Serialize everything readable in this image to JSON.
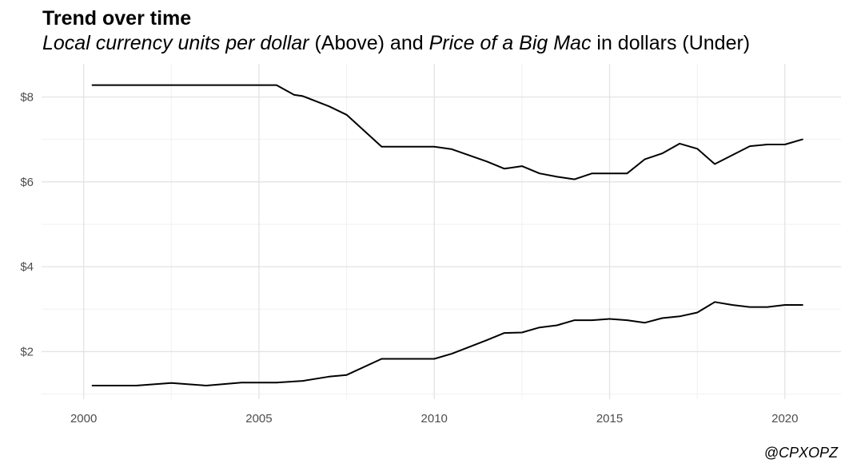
{
  "chart_data": {
    "type": "line",
    "title": "Trend over time",
    "subtitle_parts": [
      {
        "text": "Local currency units per dollar",
        "italic": true
      },
      {
        "text": " (Above) and ",
        "italic": false
      },
      {
        "text": "Price of a Big Mac",
        "italic": true
      },
      {
        "text": " in dollars (Under)",
        "italic": false
      }
    ],
    "caption": "@CPXOPZ",
    "xlim": [
      1998.8,
      2021.6
    ],
    "ylim": [
      0.88,
      8.78
    ],
    "x_ticks": [
      2000,
      2005,
      2010,
      2015,
      2020
    ],
    "x_tick_labels": [
      "2000",
      "2005",
      "2010",
      "2015",
      "2020"
    ],
    "y_ticks": [
      2,
      4,
      6,
      8
    ],
    "y_tick_labels": [
      "$2",
      "$4",
      "$6",
      "$8"
    ],
    "grid": true,
    "series": [
      {
        "color": "#000000",
        "points": [
          [
            2000.25,
            8.28
          ],
          [
            2001.5,
            8.28
          ],
          [
            2002.5,
            8.28
          ],
          [
            2003.5,
            8.28
          ],
          [
            2004.5,
            8.28
          ],
          [
            2005.5,
            8.28
          ],
          [
            2006.0,
            8.05
          ],
          [
            2006.25,
            8.02
          ],
          [
            2007.0,
            7.78
          ],
          [
            2007.5,
            7.58
          ],
          [
            2008.5,
            6.83
          ],
          [
            2010.0,
            6.83
          ],
          [
            2010.5,
            6.77
          ],
          [
            2011.5,
            6.48
          ],
          [
            2012.0,
            6.31
          ],
          [
            2012.5,
            6.37
          ],
          [
            2013.0,
            6.2
          ],
          [
            2013.5,
            6.12
          ],
          [
            2014.0,
            6.06
          ],
          [
            2014.5,
            6.2
          ],
          [
            2015.5,
            6.2
          ],
          [
            2016.0,
            6.53
          ],
          [
            2016.5,
            6.67
          ],
          [
            2017.0,
            6.9
          ],
          [
            2017.5,
            6.78
          ],
          [
            2018.0,
            6.42
          ],
          [
            2019.0,
            6.84
          ],
          [
            2019.5,
            6.88
          ],
          [
            2020.0,
            6.88
          ],
          [
            2020.5,
            7.0
          ]
        ]
      },
      {
        "color": "#000000",
        "points": [
          [
            2000.25,
            1.2
          ],
          [
            2001.5,
            1.2
          ],
          [
            2002.5,
            1.26
          ],
          [
            2003.5,
            1.2
          ],
          [
            2004.5,
            1.27
          ],
          [
            2005.5,
            1.27
          ],
          [
            2006.25,
            1.31
          ],
          [
            2007.0,
            1.41
          ],
          [
            2007.5,
            1.45
          ],
          [
            2008.5,
            1.83
          ],
          [
            2010.0,
            1.83
          ],
          [
            2010.5,
            1.95
          ],
          [
            2011.5,
            2.27
          ],
          [
            2012.0,
            2.44
          ],
          [
            2012.5,
            2.45
          ],
          [
            2013.0,
            2.57
          ],
          [
            2013.5,
            2.62
          ],
          [
            2014.0,
            2.74
          ],
          [
            2014.5,
            2.74
          ],
          [
            2015.0,
            2.77
          ],
          [
            2015.5,
            2.74
          ],
          [
            2016.0,
            2.68
          ],
          [
            2016.5,
            2.79
          ],
          [
            2017.0,
            2.83
          ],
          [
            2017.5,
            2.92
          ],
          [
            2018.0,
            3.17
          ],
          [
            2018.5,
            3.1
          ],
          [
            2019.0,
            3.05
          ],
          [
            2019.5,
            3.05
          ],
          [
            2020.0,
            3.1
          ],
          [
            2020.5,
            3.1
          ]
        ]
      }
    ]
  }
}
